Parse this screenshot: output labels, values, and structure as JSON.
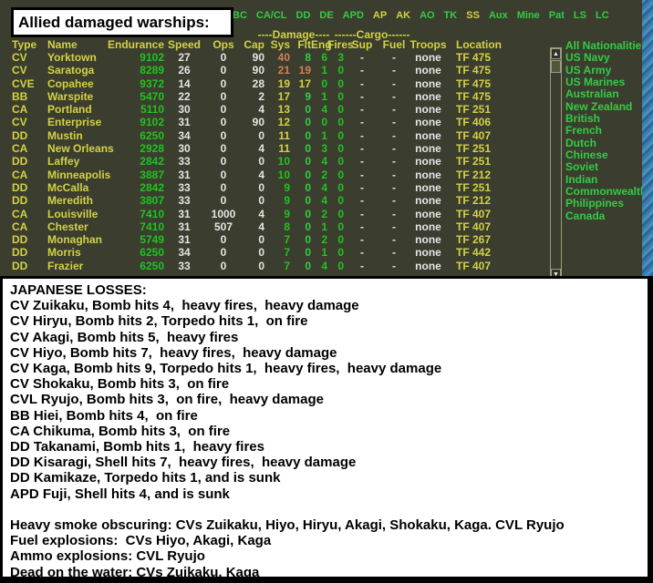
{
  "title_box": {
    "label": "Allied damaged warships:"
  },
  "menu": {
    "items": [
      {
        "label": "BC",
        "c": "g"
      },
      {
        "label": "CA/CL",
        "c": "g"
      },
      {
        "label": "DD",
        "c": "g"
      },
      {
        "label": "DE",
        "c": "g"
      },
      {
        "label": "APD",
        "c": "g"
      },
      {
        "label": "AP",
        "c": "y"
      },
      {
        "label": "AK",
        "c": "y"
      },
      {
        "label": "AO",
        "c": "g"
      },
      {
        "label": "TK",
        "c": "g"
      },
      {
        "label": "SS",
        "c": "y"
      },
      {
        "label": "Aux",
        "c": "g"
      },
      {
        "label": "Mine",
        "c": "g"
      },
      {
        "label": "Pat",
        "c": "g"
      },
      {
        "label": "LS",
        "c": "g"
      },
      {
        "label": "LC",
        "c": "g"
      }
    ]
  },
  "table": {
    "group_headers": {
      "damage": "----Damage----",
      "cargo": "------Cargo------"
    },
    "columns": [
      "Type",
      "Name",
      "Endurance",
      "Speed",
      "Ops",
      "Cap",
      "Sys",
      "Flt",
      "Eng",
      "Fires",
      "Sup",
      "Fuel",
      "Troops",
      "Location"
    ],
    "rows": [
      {
        "type": "CV",
        "name": "Yorktown",
        "endurance": "9102",
        "speed": "27",
        "ops": "0",
        "cap": "90",
        "sys": "40",
        "sysc": "o",
        "flt": "8",
        "fltc": "g",
        "eng": "6",
        "fires": "3",
        "sup": "-",
        "fuel": "-",
        "troops": "none",
        "location": "TF 475"
      },
      {
        "type": "CV",
        "name": "Saratoga",
        "endurance": "8289",
        "speed": "26",
        "ops": "0",
        "cap": "90",
        "sys": "21",
        "sysc": "o",
        "flt": "19",
        "fltc": "o",
        "eng": "1",
        "fires": "0",
        "sup": "-",
        "fuel": "-",
        "troops": "none",
        "location": "TF 475"
      },
      {
        "type": "CVE",
        "name": "Copahee",
        "endurance": "9372",
        "speed": "14",
        "ops": "0",
        "cap": "28",
        "sys": "19",
        "sysc": "y",
        "flt": "17",
        "fltc": "y",
        "eng": "0",
        "fires": "0",
        "sup": "-",
        "fuel": "-",
        "troops": "none",
        "location": "TF 475"
      },
      {
        "type": "BB",
        "name": "Warspite",
        "endurance": "5470",
        "speed": "22",
        "ops": "0",
        "cap": "2",
        "sys": "17",
        "sysc": "y",
        "flt": "9",
        "fltc": "g",
        "eng": "1",
        "fires": "0",
        "sup": "-",
        "fuel": "-",
        "troops": "none",
        "location": "TF 475"
      },
      {
        "type": "CA",
        "name": "Portland",
        "endurance": "5110",
        "speed": "30",
        "ops": "0",
        "cap": "4",
        "sys": "13",
        "sysc": "y",
        "flt": "0",
        "fltc": "g",
        "eng": "4",
        "fires": "0",
        "sup": "-",
        "fuel": "-",
        "troops": "none",
        "location": "TF 251"
      },
      {
        "type": "CV",
        "name": "Enterprise",
        "endurance": "9102",
        "speed": "31",
        "ops": "0",
        "cap": "90",
        "sys": "12",
        "sysc": "y",
        "flt": "0",
        "fltc": "g",
        "eng": "0",
        "fires": "0",
        "sup": "-",
        "fuel": "-",
        "troops": "none",
        "location": "TF 406"
      },
      {
        "type": "DD",
        "name": "Mustin",
        "endurance": "6250",
        "speed": "34",
        "ops": "0",
        "cap": "0",
        "sys": "11",
        "sysc": "y",
        "flt": "0",
        "fltc": "g",
        "eng": "1",
        "fires": "0",
        "sup": "-",
        "fuel": "-",
        "troops": "none",
        "location": "TF 407"
      },
      {
        "type": "CA",
        "name": "New Orleans",
        "endurance": "2928",
        "speed": "30",
        "ops": "0",
        "cap": "4",
        "sys": "11",
        "sysc": "y",
        "flt": "0",
        "fltc": "g",
        "eng": "3",
        "fires": "0",
        "sup": "-",
        "fuel": "-",
        "troops": "none",
        "location": "TF 251"
      },
      {
        "type": "DD",
        "name": "Laffey",
        "endurance": "2842",
        "speed": "33",
        "ops": "0",
        "cap": "0",
        "sys": "10",
        "sysc": "vg",
        "flt": "0",
        "fltc": "g",
        "eng": "4",
        "fires": "0",
        "sup": "-",
        "fuel": "-",
        "troops": "none",
        "location": "TF 251"
      },
      {
        "type": "CA",
        "name": "Minneapolis",
        "endurance": "3887",
        "speed": "31",
        "ops": "0",
        "cap": "4",
        "sys": "10",
        "sysc": "vg",
        "flt": "0",
        "fltc": "g",
        "eng": "2",
        "fires": "0",
        "sup": "-",
        "fuel": "-",
        "troops": "none",
        "location": "TF 212"
      },
      {
        "type": "DD",
        "name": "McCalla",
        "endurance": "2842",
        "speed": "33",
        "ops": "0",
        "cap": "0",
        "sys": "9",
        "sysc": "vg",
        "flt": "0",
        "fltc": "g",
        "eng": "4",
        "fires": "0",
        "sup": "-",
        "fuel": "-",
        "troops": "none",
        "location": "TF 251"
      },
      {
        "type": "DD",
        "name": "Meredith",
        "endurance": "3807",
        "speed": "33",
        "ops": "0",
        "cap": "0",
        "sys": "9",
        "sysc": "vg",
        "flt": "0",
        "fltc": "g",
        "eng": "4",
        "fires": "0",
        "sup": "-",
        "fuel": "-",
        "troops": "none",
        "location": "TF 212"
      },
      {
        "type": "CA",
        "name": "Louisville",
        "endurance": "7410",
        "speed": "31",
        "ops": "1000",
        "cap": "4",
        "sys": "9",
        "sysc": "vg",
        "flt": "0",
        "fltc": "g",
        "eng": "2",
        "fires": "0",
        "sup": "-",
        "fuel": "-",
        "troops": "none",
        "location": "TF 407"
      },
      {
        "type": "CA",
        "name": "Chester",
        "endurance": "7410",
        "speed": "31",
        "ops": "507",
        "cap": "4",
        "sys": "8",
        "sysc": "vg",
        "flt": "0",
        "fltc": "g",
        "eng": "1",
        "fires": "0",
        "sup": "-",
        "fuel": "-",
        "troops": "none",
        "location": "TF 407"
      },
      {
        "type": "DD",
        "name": "Monaghan",
        "endurance": "5749",
        "speed": "31",
        "ops": "0",
        "cap": "0",
        "sys": "7",
        "sysc": "vg",
        "flt": "0",
        "fltc": "g",
        "eng": "2",
        "fires": "0",
        "sup": "-",
        "fuel": "-",
        "troops": "none",
        "location": "TF 267"
      },
      {
        "type": "DD",
        "name": "Morris",
        "endurance": "6250",
        "speed": "34",
        "ops": "0",
        "cap": "0",
        "sys": "7",
        "sysc": "vg",
        "flt": "0",
        "fltc": "g",
        "eng": "1",
        "fires": "0",
        "sup": "-",
        "fuel": "-",
        "troops": "none",
        "location": "TF 442"
      },
      {
        "type": "DD",
        "name": "Frazier",
        "endurance": "6250",
        "speed": "33",
        "ops": "0",
        "cap": "0",
        "sys": "7",
        "sysc": "vg",
        "flt": "0",
        "fltc": "g",
        "eng": "4",
        "fires": "0",
        "sup": "-",
        "fuel": "-",
        "troops": "none",
        "location": "TF 407"
      }
    ]
  },
  "nationalities": {
    "items": [
      "All Nationalities",
      "US Navy",
      "US Army",
      "US Marines",
      "Australian",
      "New Zealand",
      "British",
      "French",
      "Dutch",
      "Chinese",
      "Soviet",
      "Indian",
      "Commonwealth",
      "Philippines",
      "Canada"
    ]
  },
  "scrollbar": {
    "up_glyph": "▲",
    "down_glyph": "▼"
  },
  "losses": {
    "title": "JAPANESE LOSSES:",
    "ships": [
      "CV Zuikaku, Bomb hits 4,  heavy fires,  heavy damage",
      "CV Hiryu, Bomb hits 2, Torpedo hits 1,  on fire",
      "CV Akagi, Bomb hits 5,  heavy fires",
      "CV Hiyo, Bomb hits 7,  heavy fires,  heavy damage",
      "CV Kaga, Bomb hits 9, Torpedo hits 1,  heavy fires,  heavy damage",
      "CV Shokaku, Bomb hits 3,  on fire",
      "CVL Ryujo, Bomb hits 3,  on fire,  heavy damage",
      "BB Hiei, Bomb hits 4,  on fire",
      "CA Chikuma, Bomb hits 3,  on fire",
      "DD Takanami, Bomb hits 1,  heavy fires",
      "DD Kisaragi, Shell hits 7,  heavy fires,  heavy damage",
      "DD Kamikaze, Torpedo hits 1, and is sunk",
      "APD Fuji, Shell hits 4, and is sunk"
    ],
    "summary": [
      "Heavy smoke obscuring: CVs Zuikaku, Hiyo, Hiryu, Akagi, Shokaku, Kaga. CVL Ryujo",
      "Fuel explosions:  CVs Hiyo, Akagi, Kaga",
      "Ammo explosions: CVL Ryujo",
      "Dead on the water: CVs Zuikaku, Kaga"
    ]
  },
  "colors": {
    "panel_bg": "#3b3d2f",
    "header_yellow": "#d2d244",
    "menu_green": "#33cc44",
    "value_green": "#1fc41f",
    "value_white": "#e4e4e4",
    "damage_orange": "#d2814e",
    "wallpaper_blue": "#3a7cab",
    "losses_bg": "#ffffff"
  }
}
